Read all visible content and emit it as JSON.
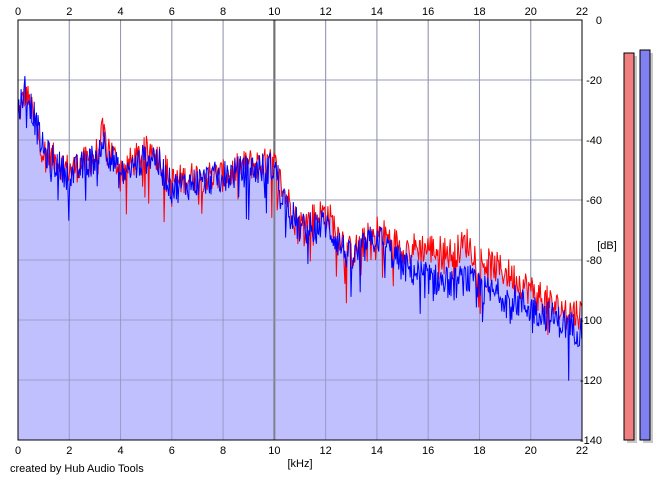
{
  "credit": "created by Hub Audio Tools",
  "chart_data": {
    "type": "area",
    "x_axis": {
      "label": "[kHz]",
      "range": [
        0,
        22
      ],
      "ticks": [
        0,
        2,
        4,
        6,
        8,
        10,
        12,
        14,
        16,
        18,
        20,
        22
      ]
    },
    "y_axis": {
      "label": "[dB]",
      "range": [
        -140,
        0
      ],
      "ticks": [
        0,
        -20,
        -40,
        -60,
        -80,
        -100,
        -120,
        -140
      ],
      "tick_labels": [
        "0",
        "-20",
        "-40",
        "-60",
        "-80",
        "-100",
        "-120",
        "-140"
      ]
    },
    "grid": true,
    "series": [
      {
        "color": "#ff0000",
        "x": [
          0,
          0.3,
          1,
          2,
          3,
          3.3,
          4,
          5,
          5.3,
          6,
          7,
          8,
          9,
          10,
          10.4,
          11,
          12,
          13,
          14,
          15,
          16,
          17,
          17.5,
          18,
          19,
          20,
          21,
          22
        ],
        "y": [
          -32,
          -24,
          -44,
          -50,
          -46,
          -38,
          -50,
          -44,
          -42,
          -54,
          -52,
          -52,
          -48,
          -48,
          -58,
          -68,
          -64,
          -78,
          -70,
          -76,
          -76,
          -78,
          -74,
          -80,
          -84,
          -90,
          -96,
          -98
        ]
      },
      {
        "color": "#0000ff",
        "x": [
          0,
          0.3,
          1,
          2,
          3,
          3.3,
          4,
          5,
          5.3,
          6,
          7,
          8,
          9,
          10,
          10.4,
          11,
          12,
          13,
          14,
          15,
          16,
          17,
          17.5,
          18,
          19,
          20,
          21,
          22
        ],
        "y": [
          -30,
          -22,
          -44,
          -52,
          -46,
          -40,
          -52,
          -46,
          -45,
          -56,
          -54,
          -52,
          -50,
          -49,
          -60,
          -70,
          -68,
          -80,
          -72,
          -82,
          -86,
          -88,
          -86,
          -90,
          -92,
          -96,
          -100,
          -104
        ]
      }
    ],
    "level_meters": [
      {
        "color": "#f08080",
        "value_db": -11
      },
      {
        "color": "#8080f0",
        "value_db": -10
      }
    ],
    "fill_color": "#c0c0ff"
  }
}
